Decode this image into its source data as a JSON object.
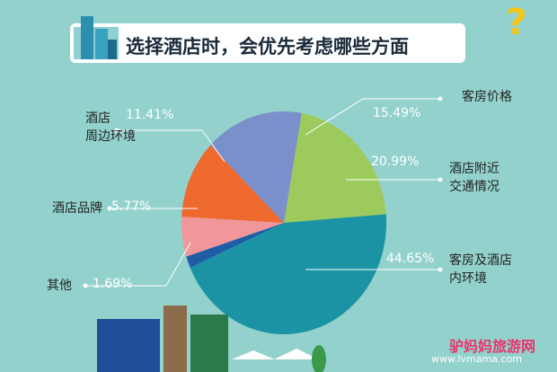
{
  "chart_data": {
    "type": "pie",
    "title": "选择酒店时，会优先考虑哪些方面",
    "categories": [
      "酒店附近\n交通情况",
      "客房及酒店\n内环境",
      "其他",
      "酒店品牌",
      "酒店\n周边环境",
      "客房价格"
    ],
    "values": [
      20.99,
      44.65,
      1.69,
      5.77,
      11.41,
      15.49
    ],
    "value_labels": [
      "20.99%",
      "44.65%",
      "1.69%",
      "5.77%",
      "11.41%",
      "15.49%"
    ],
    "colors": [
      "#9dca5c",
      "#1b93a4",
      "#1f5ea6",
      "#f1979b",
      "#ee692e",
      "#7b8fca"
    ]
  },
  "watermark": {
    "brand": "驴妈妈旅游网",
    "url": "www.lvmama.com"
  }
}
